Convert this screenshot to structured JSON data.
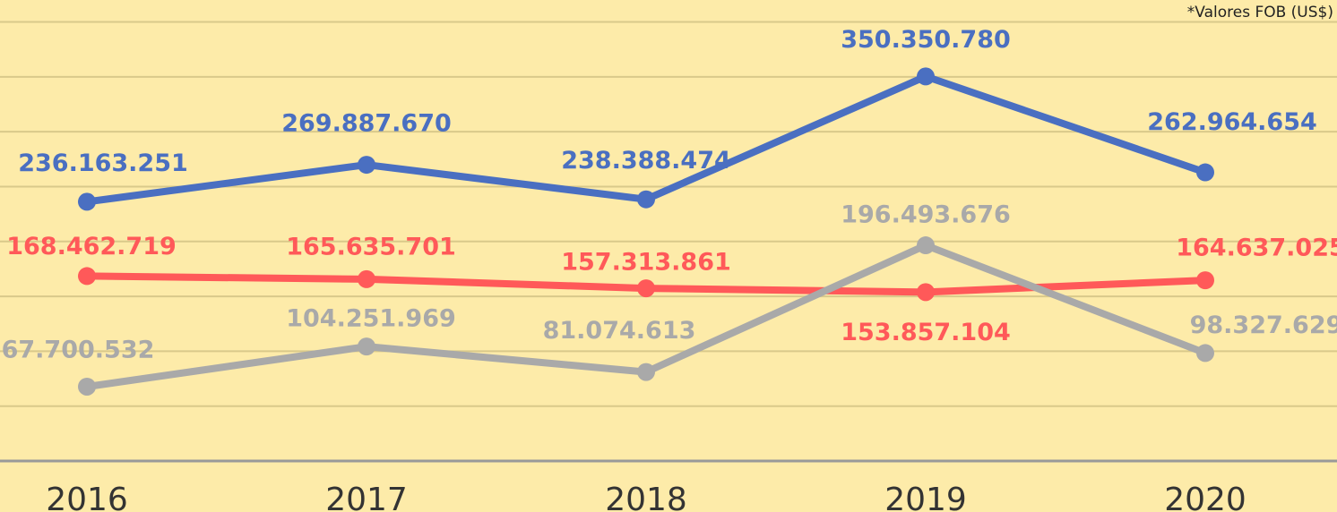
{
  "chart_data": {
    "type": "line",
    "annotation": "*Valores FOB (US$)",
    "categories": [
      "2016",
      "2017",
      "2018",
      "2019",
      "2020"
    ],
    "series": [
      {
        "color": "#4a6fc1",
        "values": [
          236163251,
          269887670,
          238388474,
          350350780,
          262964654
        ],
        "value_labels": [
          "236.163.251",
          "269.887.670",
          "238.388.474",
          "350.350.780",
          "262.964.654"
        ]
      },
      {
        "color": "#ff5959",
        "values": [
          168462719,
          165635701,
          157313861,
          153857104,
          164637025
        ],
        "value_labels": [
          "168.462.719",
          "165.635.701",
          "157.313.861",
          "153.857.104",
          "164.637.025"
        ]
      },
      {
        "color": "#a9a9a9",
        "values": [
          67700532,
          104251969,
          81074613,
          196493676,
          98327629
        ],
        "value_labels": [
          "67.700.532",
          "104.251.969",
          "81.074.613",
          "196.493.676",
          "98.327.629"
        ]
      }
    ],
    "ylim": [
      0,
      420000000
    ],
    "yticks": [
      0,
      50000000,
      100000000,
      150000000,
      200000000,
      250000000,
      300000000,
      350000000,
      400000000
    ],
    "grid": true
  }
}
